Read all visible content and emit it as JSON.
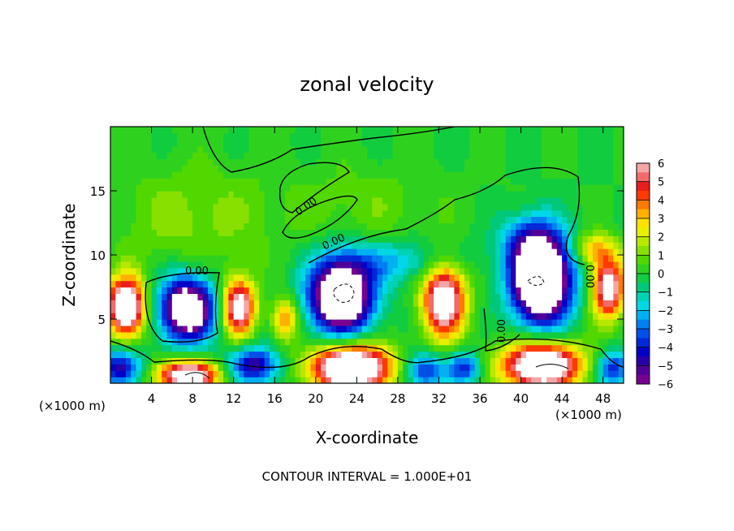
{
  "chart_data": {
    "type": "heatmap",
    "title": "zonal velocity",
    "xlabel": "X-coordinate",
    "ylabel": "Z-coordinate",
    "x_unit_left": "(×1000 m)",
    "x_unit_right": "(×1000 m)",
    "xlim": [
      0,
      50
    ],
    "ylim": [
      0,
      20
    ],
    "x_ticks": [
      4,
      8,
      12,
      16,
      20,
      24,
      28,
      32,
      36,
      40,
      44,
      48
    ],
    "y_ticks": [
      5,
      10,
      15
    ],
    "footer": "CONTOUR INTERVAL = 1.000E+01",
    "contour_labels": [
      "0.00",
      "0.00",
      "0.00",
      "0.00",
      "0.00"
    ],
    "colorbar": {
      "ticks": [
        6,
        5,
        4,
        3,
        2,
        1,
        0,
        -1,
        -2,
        -3,
        -4,
        -5,
        -6
      ],
      "levels": [
        {
          "from": 5.5,
          "to": 6,
          "color": "#f4a6a6"
        },
        {
          "from": 5,
          "to": 5.5,
          "color": "#f46a6a"
        },
        {
          "from": 4.5,
          "to": 5,
          "color": "#e81e1e"
        },
        {
          "from": 4,
          "to": 4.5,
          "color": "#ff3a00"
        },
        {
          "from": 3.5,
          "to": 4,
          "color": "#ff7a00"
        },
        {
          "from": 3,
          "to": 3.5,
          "color": "#ffb000"
        },
        {
          "from": 2.5,
          "to": 3,
          "color": "#ffe000"
        },
        {
          "from": 2,
          "to": 2.5,
          "color": "#e8f000"
        },
        {
          "from": 1.5,
          "to": 2,
          "color": "#b8e800"
        },
        {
          "from": 1,
          "to": 1.5,
          "color": "#88e000"
        },
        {
          "from": 0.5,
          "to": 1,
          "color": "#50d800"
        },
        {
          "from": 0,
          "to": 0.5,
          "color": "#2ed21e"
        },
        {
          "from": -0.5,
          "to": 0,
          "color": "#12cc40"
        },
        {
          "from": -1,
          "to": -0.5,
          "color": "#00c87a"
        },
        {
          "from": -1.5,
          "to": -1,
          "color": "#00d2b4"
        },
        {
          "from": -2,
          "to": -1.5,
          "color": "#00d8e8"
        },
        {
          "from": -2.5,
          "to": -2,
          "color": "#00b0f0"
        },
        {
          "from": -3,
          "to": -2.5,
          "color": "#0080f0"
        },
        {
          "from": -3.5,
          "to": -3,
          "color": "#0050e8"
        },
        {
          "from": -4,
          "to": -3.5,
          "color": "#0028d8"
        },
        {
          "from": -4.5,
          "to": -4,
          "color": "#0000c8"
        },
        {
          "from": -5,
          "to": -4.5,
          "color": "#2800a8"
        },
        {
          "from": -5.5,
          "to": -5,
          "color": "#500098"
        },
        {
          "from": -6,
          "to": -5.5,
          "color": "#780090"
        }
      ]
    },
    "field_features": [
      {
        "x": 1.5,
        "z": 6.0,
        "amplitude": 9,
        "rx": 1.8,
        "rz": 2.2
      },
      {
        "x": 7.5,
        "z": 5.8,
        "amplitude": -9,
        "rx": 2.6,
        "rz": 2.4
      },
      {
        "x": 12.5,
        "z": 6.0,
        "amplitude": 7,
        "rx": 1.6,
        "rz": 2.2
      },
      {
        "x": 17.0,
        "z": 5.0,
        "amplitude": 4,
        "rx": 1.2,
        "rz": 1.6
      },
      {
        "x": 22.5,
        "z": 6.8,
        "amplitude": -10,
        "rx": 3.0,
        "rz": 2.8
      },
      {
        "x": 32.5,
        "z": 6.5,
        "amplitude": 8,
        "rx": 2.0,
        "rz": 2.8
      },
      {
        "x": 42.0,
        "z": 8.0,
        "amplitude": -11,
        "rx": 2.8,
        "rz": 3.2
      },
      {
        "x": 48.5,
        "z": 7.5,
        "amplitude": 7,
        "rx": 1.6,
        "rz": 2.4
      },
      {
        "x": 1.0,
        "z": 1.2,
        "amplitude": -5,
        "rx": 2.0,
        "rz": 1.4
      },
      {
        "x": 7.5,
        "z": 0.6,
        "amplitude": 8,
        "rx": 3.0,
        "rz": 1.2
      },
      {
        "x": 14.0,
        "z": 1.4,
        "amplitude": -5,
        "rx": 2.4,
        "rz": 1.4
      },
      {
        "x": 23.5,
        "z": 1.2,
        "amplitude": 10,
        "rx": 3.8,
        "rz": 1.8
      },
      {
        "x": 30.5,
        "z": 1.0,
        "amplitude": -4,
        "rx": 2.0,
        "rz": 1.4
      },
      {
        "x": 34.5,
        "z": 1.2,
        "amplitude": -4,
        "rx": 1.6,
        "rz": 1.2
      },
      {
        "x": 42.0,
        "z": 1.4,
        "amplitude": 9,
        "rx": 3.8,
        "rz": 1.8
      },
      {
        "x": 49.0,
        "z": 1.2,
        "amplitude": -4,
        "rx": 1.6,
        "rz": 1.4
      },
      {
        "x": 28.0,
        "z": 9.5,
        "amplitude": -2,
        "rx": 6.0,
        "rz": 1.6
      },
      {
        "x": 41.0,
        "z": 11.0,
        "amplitude": -3,
        "rx": 3.0,
        "rz": 2.2
      },
      {
        "x": 25.0,
        "z": 14.0,
        "amplitude": 0.8,
        "rx": 8.0,
        "rz": 3.0
      },
      {
        "x": 8.0,
        "z": 13.0,
        "amplitude": 1.2,
        "rx": 8.0,
        "rz": 4.0
      },
      {
        "x": 47.0,
        "z": 10.5,
        "amplitude": 3,
        "rx": 2.0,
        "rz": 1.2
      }
    ]
  }
}
